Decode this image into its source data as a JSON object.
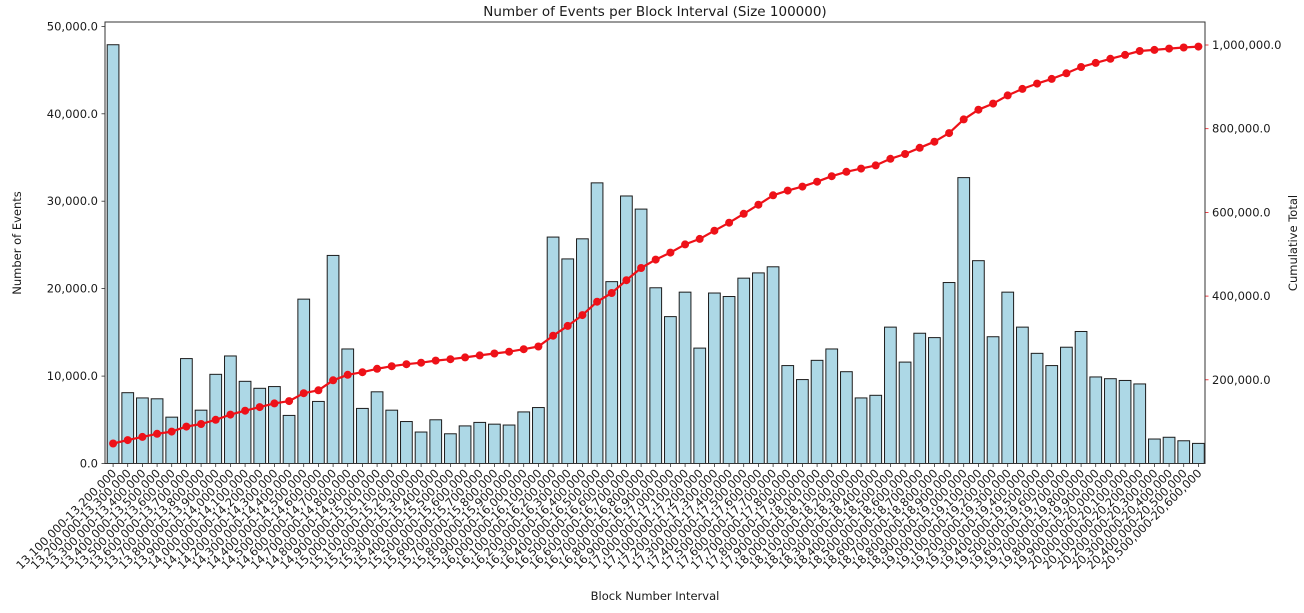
{
  "chart_data": {
    "type": "bar+line",
    "title": "Number of Events per Block Interval (Size 100000)",
    "xlabel": "Block Number Interval",
    "ylabel_left": "Number of Events",
    "ylabel_right": "Cumulative Total",
    "grid": false,
    "legend": null,
    "ylim_left": [
      0,
      50500
    ],
    "ylim_right": [
      0,
      1055000
    ],
    "yticks_left": {
      "values": [
        0,
        10000,
        20000,
        30000,
        40000,
        50000
      ],
      "labels": [
        "0.0",
        "10,000.0",
        "20,000.0",
        "30,000.0",
        "40,000.0",
        "50,000.0"
      ]
    },
    "yticks_right": {
      "values": [
        200000,
        400000,
        600000,
        800000,
        1000000
      ],
      "labels": [
        "200,000.0",
        "400,000.0",
        "600,000.0",
        "800,000.0",
        "1,000,000.0"
      ]
    },
    "categories": [
      "13,100,000-13,200,000",
      "13,200,000-13,300,000",
      "13,300,000-13,400,000",
      "13,400,000-13,500,000",
      "13,500,000-13,600,000",
      "13,600,000-13,700,000",
      "13,700,000-13,800,000",
      "13,800,000-13,900,000",
      "13,900,000-14,000,000",
      "14,000,000-14,100,000",
      "14,100,000-14,200,000",
      "14,200,000-14,300,000",
      "14,300,000-14,400,000",
      "14,400,000-14,500,000",
      "14,500,000-14,600,000",
      "14,600,000-14,700,000",
      "14,700,000-14,800,000",
      "14,800,000-14,900,000",
      "14,900,000-15,000,000",
      "15,000,000-15,100,000",
      "15,100,000-15,200,000",
      "15,200,000-15,300,000",
      "15,300,000-15,400,000",
      "15,400,000-15,500,000",
      "15,500,000-15,600,000",
      "15,600,000-15,700,000",
      "15,700,000-15,800,000",
      "15,800,000-15,900,000",
      "15,900,000-16,000,000",
      "16,000,000-16,100,000",
      "16,100,000-16,200,000",
      "16,200,000-16,300,000",
      "16,300,000-16,400,000",
      "16,400,000-16,500,000",
      "16,500,000-16,600,000",
      "16,600,000-16,700,000",
      "16,700,000-16,800,000",
      "16,800,000-16,900,000",
      "16,900,000-17,000,000",
      "17,000,000-17,100,000",
      "17,100,000-17,200,000",
      "17,200,000-17,300,000",
      "17,300,000-17,400,000",
      "17,400,000-17,500,000",
      "17,500,000-17,600,000",
      "17,600,000-17,700,000",
      "17,700,000-17,800,000",
      "17,800,000-17,900,000",
      "17,900,000-18,000,000",
      "18,000,000-18,100,000",
      "18,100,000-18,200,000",
      "18,200,000-18,300,000",
      "18,300,000-18,400,000",
      "18,400,000-18,500,000",
      "18,500,000-18,600,000",
      "18,600,000-18,700,000",
      "18,700,000-18,800,000",
      "18,800,000-18,900,000",
      "18,900,000-19,000,000",
      "19,000,000-19,100,000",
      "19,100,000-19,200,000",
      "19,200,000-19,300,000",
      "19,300,000-19,400,000",
      "19,400,000-19,500,000",
      "19,500,000-19,600,000",
      "19,600,000-19,700,000",
      "19,700,000-19,800,000",
      "19,800,000-19,900,000",
      "19,900,000-20,000,000",
      "20,000,000-20,100,000",
      "20,100,000-20,200,000",
      "20,200,000-20,300,000",
      "20,300,000-20,400,000",
      "20,400,000-20,500,000",
      "20,500,000-20,600,000"
    ],
    "series": [
      {
        "name": "Number of Events",
        "type": "bar",
        "axis": "left",
        "color": "#add8e6",
        "edge_color": "#1c1c1c",
        "values": [
          47900,
          8100,
          7500,
          7400,
          5300,
          12000,
          6100,
          10200,
          12300,
          9400,
          8600,
          8800,
          5500,
          18800,
          7100,
          23800,
          13100,
          6300,
          8200,
          6100,
          4800,
          3600,
          5000,
          3400,
          4300,
          4700,
          4500,
          4400,
          5900,
          6400,
          25900,
          23400,
          25700,
          32100,
          20800,
          30600,
          29100,
          20100,
          16800,
          19600,
          13200,
          19500,
          19100,
          21200,
          21800,
          22500,
          11200,
          9600,
          11800,
          13100,
          10500,
          7500,
          7800,
          15600,
          11600,
          14900,
          14400,
          20700,
          32700,
          23200,
          14500,
          19600,
          15600,
          12600,
          11200,
          13300,
          15100,
          9900,
          9700,
          9500,
          9100,
          2800,
          3000,
          2600,
          2300
        ]
      },
      {
        "name": "Cumulative Total",
        "type": "line",
        "axis": "right",
        "color": "#ee1118",
        "marker": "circle",
        "values": [
          47900,
          56000,
          63500,
          70900,
          76200,
          88200,
          94300,
          104500,
          116800,
          126200,
          134800,
          143600,
          149100,
          167900,
          175000,
          198800,
          211900,
          218200,
          226400,
          232500,
          237300,
          240900,
          245900,
          249300,
          253600,
          258300,
          262800,
          267200,
          273100,
          279500,
          305400,
          328800,
          354500,
          386600,
          407400,
          438000,
          467100,
          487200,
          504000,
          523600,
          536800,
          556300,
          575400,
          596600,
          618400,
          640900,
          652100,
          661700,
          673500,
          686600,
          697100,
          704600,
          712400,
          728000,
          739600,
          754500,
          768900,
          789600,
          822300,
          845500,
          860000,
          879600,
          895200,
          907800,
          919000,
          932300,
          947400,
          957300,
          967000,
          976500,
          985600,
          988400,
          991400,
          994000,
          996300
        ]
      }
    ]
  }
}
